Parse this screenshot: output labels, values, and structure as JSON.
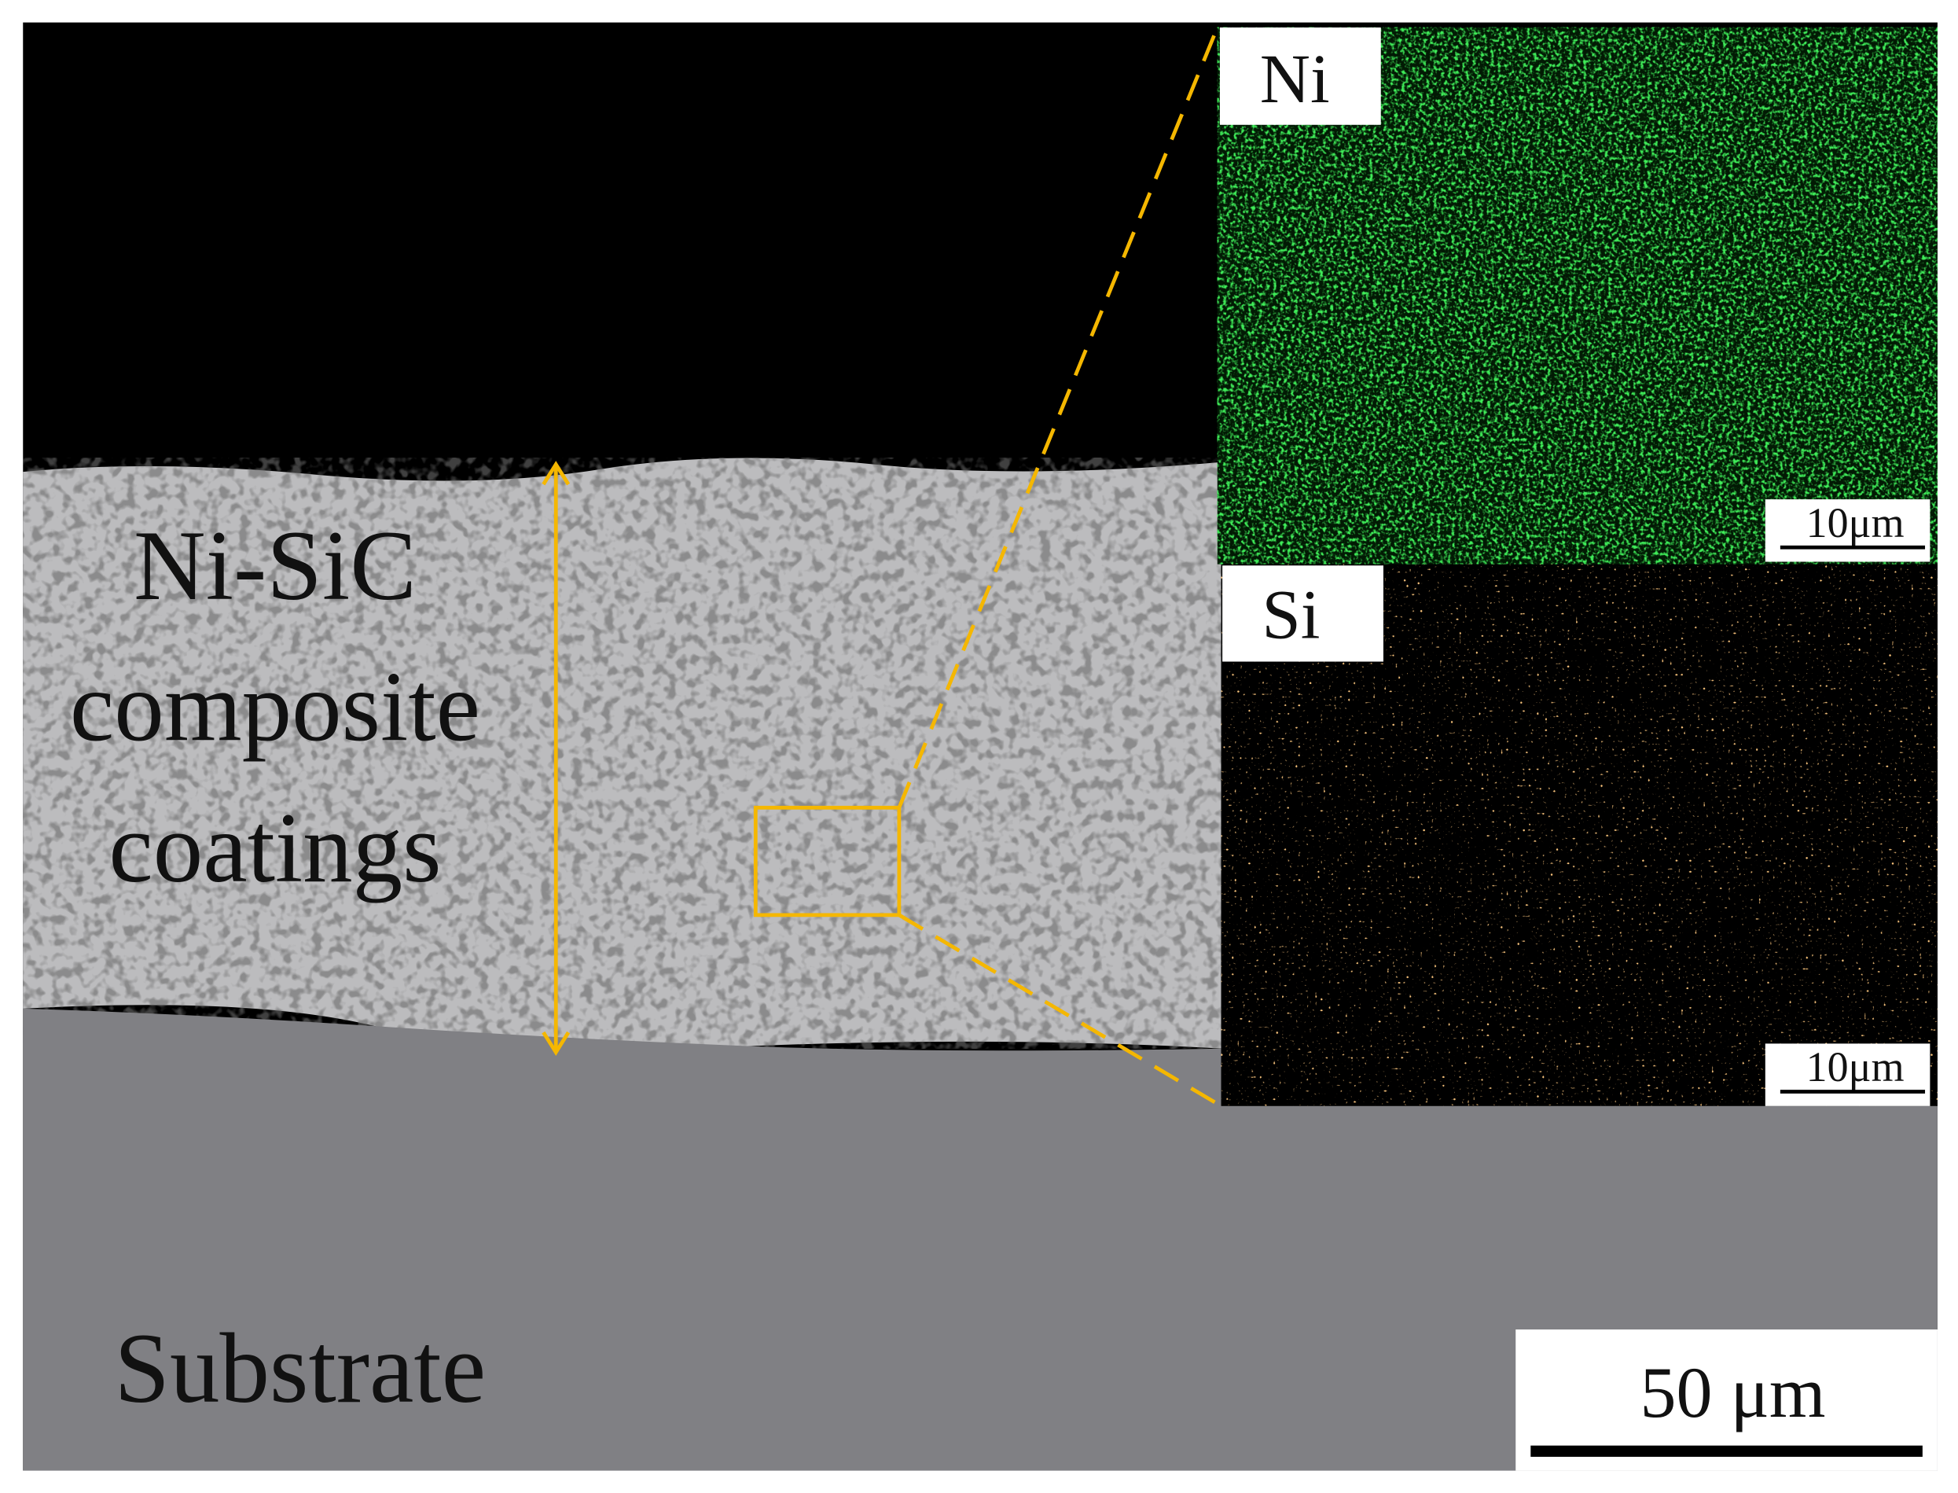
{
  "micrograph": {
    "coating_label": [
      "Ni-SiC",
      "composite",
      "coatings"
    ],
    "substrate_label": "Substrate",
    "scale_bar": "50 μm"
  },
  "eds_maps": [
    {
      "element": "Ni",
      "scale_bar": "10μm"
    },
    {
      "element": "Si",
      "scale_bar": "10μm"
    }
  ]
}
